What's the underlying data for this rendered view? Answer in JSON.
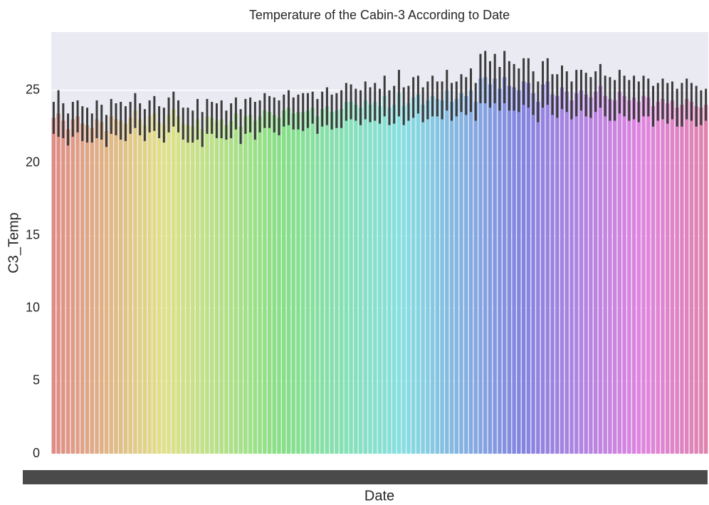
{
  "chart_data": {
    "type": "bar",
    "title": "Temperature of the Cabin-3 According to Date",
    "x_label": "Date",
    "y_label": "C3_Temp",
    "palette": "husl",
    "error_color": "#3b3b3b",
    "grid": true,
    "ylim": [
      0,
      29
    ],
    "yticks": [
      0,
      5,
      10,
      15,
      20,
      25
    ],
    "categories": [
      null,
      null,
      null,
      null,
      null,
      null,
      null,
      null,
      null,
      null,
      null,
      null,
      null,
      null,
      null,
      null,
      null,
      null,
      null,
      null,
      null,
      null,
      null,
      null,
      null,
      null,
      null,
      null,
      null,
      null,
      null,
      null,
      null,
      null,
      null,
      null,
      null,
      null,
      null,
      null,
      null,
      null,
      null,
      null,
      null,
      null,
      null,
      null,
      null,
      null,
      null,
      null,
      null,
      null,
      null,
      null,
      null,
      null,
      null,
      null,
      null,
      null,
      null,
      null,
      null,
      null,
      null,
      null,
      null,
      null,
      null,
      null,
      null,
      null,
      null,
      null,
      null,
      null,
      null,
      null,
      null,
      null,
      null,
      null,
      null,
      null,
      null,
      null,
      null,
      null,
      null,
      null,
      null,
      null,
      null,
      null,
      null,
      null,
      null,
      null,
      null,
      null,
      null,
      null,
      null,
      null,
      null,
      null,
      null,
      null,
      null,
      null,
      null,
      null,
      null,
      null,
      null,
      null,
      null,
      null,
      null,
      null,
      null,
      null,
      null,
      null,
      null,
      null,
      null,
      null,
      null,
      null,
      null,
      null,
      null,
      null,
      null
    ],
    "values": [
      23.1,
      23.4,
      22.9,
      22.3,
      23.0,
      23.2,
      22.7,
      22.6,
      22.4,
      23.0,
      22.8,
      22.2,
      23.2,
      23.0,
      22.9,
      22.7,
      23.1,
      23.6,
      23.0,
      22.6,
      23.2,
      23.4,
      22.8,
      22.6,
      23.3,
      23.7,
      23.2,
      22.7,
      22.6,
      22.5,
      23.0,
      22.3,
      23.2,
      23.1,
      22.9,
      23.0,
      22.6,
      22.9,
      23.4,
      22.5,
      23.2,
      23.3,
      22.9,
      23.2,
      23.6,
      23.5,
      23.3,
      23.1,
      23.6,
      23.8,
      23.4,
      23.5,
      23.5,
      23.6,
      23.8,
      23.2,
      23.7,
      23.9,
      23.5,
      23.6,
      23.7,
      24.2,
      24.2,
      24.0,
      23.8,
      24.3,
      24.0,
      24.2,
      23.9,
      24.6,
      23.8,
      24.0,
      24.8,
      23.9,
      24.1,
      24.5,
      24.7,
      24.0,
      24.3,
      24.6,
      24.4,
      24.3,
      25.0,
      24.2,
      24.4,
      24.8,
      24.6,
      25.0,
      24.2,
      25.8,
      25.9,
      25.4,
      25.8,
      25.1,
      25.9,
      25.3,
      25.2,
      25.0,
      25.6,
      25.5,
      24.8,
      24.2,
      25.4,
      25.6,
      24.7,
      24.6,
      25.2,
      24.9,
      24.3,
      24.8,
      25.0,
      24.7,
      24.5,
      24.9,
      25.3,
      24.6,
      24.4,
      24.3,
      24.9,
      24.6,
      24.3,
      24.5,
      24.2,
      24.6,
      24.5,
      23.9,
      24.2,
      24.4,
      24.1,
      24.3,
      23.8,
      24.0,
      24.4,
      24.2,
      23.9,
      23.8,
      24.0
    ],
    "errors": [
      1.1,
      1.6,
      1.2,
      1.1,
      1.2,
      1.1,
      1.2,
      1.2,
      1.0,
      1.3,
      1.2,
      1.1,
      1.2,
      1.1,
      1.3,
      1.2,
      1.1,
      1.2,
      1.1,
      1.1,
      1.1,
      1.2,
      1.1,
      1.2,
      1.2,
      1.2,
      1.1,
      1.1,
      1.2,
      1.1,
      1.4,
      1.2,
      1.2,
      1.1,
      1.2,
      1.3,
      1.0,
      1.2,
      1.1,
      1.2,
      1.2,
      1.2,
      1.3,
      1.1,
      1.2,
      1.1,
      1.2,
      1.2,
      1.1,
      1.2,
      1.1,
      1.2,
      1.3,
      1.2,
      1.1,
      1.2,
      1.2,
      1.3,
      1.2,
      1.2,
      1.3,
      1.3,
      1.2,
      1.1,
      1.2,
      1.3,
      1.2,
      1.3,
      1.2,
      1.4,
      1.2,
      1.3,
      1.6,
      1.3,
      1.2,
      1.4,
      1.3,
      1.2,
      1.3,
      1.4,
      1.2,
      1.3,
      1.4,
      1.3,
      1.2,
      1.3,
      1.3,
      1.5,
      1.3,
      1.7,
      1.8,
      1.6,
      1.7,
      1.5,
      1.8,
      1.7,
      1.6,
      1.5,
      1.6,
      1.7,
      1.5,
      1.4,
      1.6,
      1.6,
      1.4,
      1.5,
      1.5,
      1.4,
      1.3,
      1.6,
      1.4,
      1.5,
      1.4,
      1.4,
      1.5,
      1.4,
      1.5,
      1.4,
      1.5,
      1.4,
      1.4,
      1.5,
      1.4,
      1.4,
      1.3,
      1.4,
      1.3,
      1.4,
      1.4,
      1.3,
      1.3,
      1.5,
      1.4,
      1.3,
      1.4,
      1.2,
      1.1
    ]
  }
}
